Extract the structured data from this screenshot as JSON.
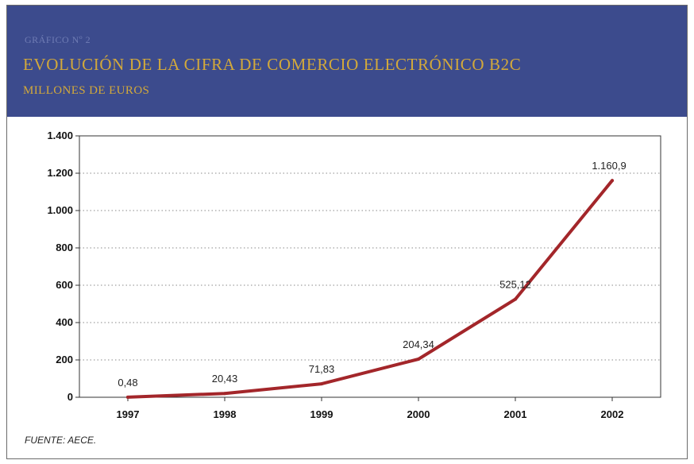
{
  "header": {
    "label": "GRÁFICO Nº 2",
    "title": "EVOLUCIÓN DE LA CIFRA DE COMERCIO ELECTRÓNICO B2C",
    "subtitle": "MILLONES DE EUROS"
  },
  "source": "FUENTE: AECE.",
  "colors": {
    "banner": "#3c4b8d",
    "title": "#d3a93a",
    "line": "#a3262a"
  },
  "chart_data": {
    "type": "line",
    "title": "EVOLUCIÓN DE LA CIFRA DE COMERCIO ELECTRÓNICO B2C",
    "ylabel": "",
    "xlabel": "",
    "categories": [
      "1997",
      "1998",
      "1999",
      "2000",
      "2001",
      "2002"
    ],
    "series": [
      {
        "values": [
          0.48,
          20.43,
          71.83,
          204.34,
          525.12,
          1160.9
        ],
        "labels": [
          "0,48",
          "20,43",
          "71,83",
          "204,34",
          "525,12",
          "1.160,9"
        ]
      }
    ],
    "ylim": [
      0,
      1400
    ],
    "yticks": [
      0,
      200,
      400,
      600,
      800,
      1000,
      1200,
      1400
    ],
    "ytick_labels": [
      "0",
      "200",
      "400",
      "600",
      "800",
      "1.000",
      "1.200",
      "1.400"
    ],
    "grid": "horizontal dotted",
    "legend": "none"
  }
}
